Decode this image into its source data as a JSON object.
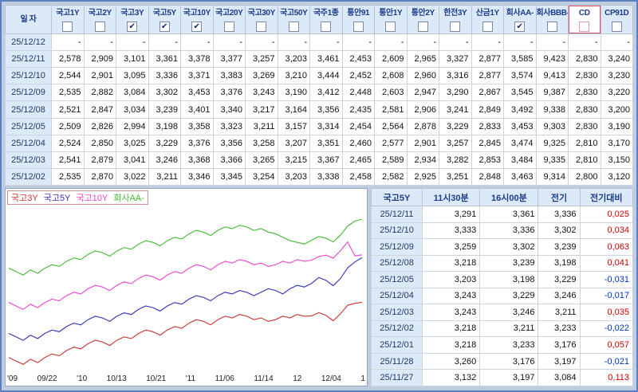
{
  "top_table": {
    "date_header": "일 자",
    "columns": [
      {
        "label": "국고1Y",
        "checked": false,
        "highlight": false
      },
      {
        "label": "국고2Y",
        "checked": false,
        "highlight": false
      },
      {
        "label": "국고3Y",
        "checked": true,
        "highlight": false
      },
      {
        "label": "국고5Y",
        "checked": true,
        "highlight": false
      },
      {
        "label": "국고10Y",
        "checked": true,
        "highlight": false
      },
      {
        "label": "국고20Y",
        "checked": false,
        "highlight": false
      },
      {
        "label": "국고30Y",
        "checked": false,
        "highlight": false
      },
      {
        "label": "국고50Y",
        "checked": false,
        "highlight": false
      },
      {
        "label": "국주1종",
        "checked": false,
        "highlight": false
      },
      {
        "label": "통안91",
        "checked": false,
        "highlight": false
      },
      {
        "label": "통안1Y",
        "checked": false,
        "highlight": false
      },
      {
        "label": "통안2Y",
        "checked": false,
        "highlight": false
      },
      {
        "label": "한전3Y",
        "checked": false,
        "highlight": false
      },
      {
        "label": "산금1Y",
        "checked": false,
        "highlight": false
      },
      {
        "label": "회사AA-",
        "checked": true,
        "highlight": false
      },
      {
        "label": "회사BBB-",
        "checked": false,
        "highlight": false
      },
      {
        "label": "CD",
        "checked": false,
        "highlight": true
      },
      {
        "label": "CP91D",
        "checked": false,
        "highlight": false
      }
    ],
    "rows": [
      {
        "date": "25/12/12",
        "values": [
          "-",
          "-",
          "-",
          "-",
          "-",
          "-",
          "-",
          "-",
          "-",
          "-",
          "-",
          "-",
          "-",
          "-",
          "-",
          "-",
          "-",
          "-"
        ]
      },
      {
        "date": "25/12/11",
        "values": [
          "2,578",
          "2,909",
          "3,101",
          "3,361",
          "3,378",
          "3,377",
          "3,257",
          "3,203",
          "3,461",
          "2,453",
          "2,609",
          "2,965",
          "3,327",
          "2,877",
          "3,585",
          "9,423",
          "2,830",
          "3,240"
        ]
      },
      {
        "date": "25/12/10",
        "values": [
          "2,544",
          "2,901",
          "3,095",
          "3,336",
          "3,371",
          "3,383",
          "3,269",
          "3,210",
          "3,444",
          "2,452",
          "2,608",
          "2,960",
          "3,316",
          "2,877",
          "3,574",
          "9,413",
          "2,830",
          "3,230"
        ]
      },
      {
        "date": "25/12/09",
        "values": [
          "2,535",
          "2,882",
          "3,084",
          "3,302",
          "3,453",
          "3,376",
          "3,243",
          "3,190",
          "3,412",
          "2,448",
          "2,603",
          "2,947",
          "3,290",
          "2,867",
          "3,545",
          "9,387",
          "2,830",
          "3,220"
        ]
      },
      {
        "date": "25/12/08",
        "values": [
          "2,521",
          "2,847",
          "3,034",
          "3,239",
          "3,401",
          "3,340",
          "3,217",
          "3,164",
          "3,356",
          "2,435",
          "2,581",
          "2,906",
          "3,241",
          "2,849",
          "3,492",
          "9,338",
          "2,830",
          "3,200"
        ]
      },
      {
        "date": "25/12/05",
        "values": [
          "2,509",
          "2,826",
          "2,994",
          "3,198",
          "3,358",
          "3,323",
          "3,211",
          "3,157",
          "3,314",
          "2,454",
          "2,564",
          "2,878",
          "3,229",
          "2,833",
          "3,453",
          "9,303",
          "2,830",
          "3,190"
        ]
      },
      {
        "date": "25/12/04",
        "values": [
          "2,524",
          "2,850",
          "3,025",
          "3,229",
          "3,376",
          "3,356",
          "3,258",
          "3,207",
          "3,351",
          "2,460",
          "2,577",
          "2,901",
          "3,257",
          "2,845",
          "3,474",
          "9,325",
          "2,810",
          "3,170"
        ]
      },
      {
        "date": "25/12/03",
        "values": [
          "2,541",
          "2,879",
          "3,041",
          "3,246",
          "3,368",
          "3,366",
          "3,265",
          "3,215",
          "3,367",
          "2,465",
          "2,589",
          "2,934",
          "3,282",
          "2,853",
          "3,484",
          "9,335",
          "2,810",
          "3,150"
        ]
      },
      {
        "date": "25/12/02",
        "values": [
          "2,535",
          "2,870",
          "3,022",
          "3,211",
          "3,346",
          "3,345",
          "3,254",
          "3,203",
          "3,338",
          "2,458",
          "2,582",
          "2,925",
          "3,251",
          "2,848",
          "3,463",
          "9,314",
          "2,800",
          "3,120"
        ]
      }
    ]
  },
  "chart_data": {
    "type": "line",
    "title": "",
    "ylim": [
      2.7,
      3.65
    ],
    "grid": false,
    "legend_position": "top-left",
    "x_labels": [
      "'09",
      "09/22",
      "'10",
      "10/13",
      "10/21",
      "'11",
      "11/06",
      "11/14",
      "12",
      "12/04",
      "1"
    ],
    "series": [
      {
        "name": "국고3Y",
        "color": "#cc3333",
        "values": [
          2.78,
          2.76,
          2.74,
          2.77,
          2.75,
          2.78,
          2.8,
          2.79,
          2.82,
          2.84,
          2.83,
          2.86,
          2.88,
          2.87,
          2.85,
          2.88,
          2.9,
          2.89,
          2.92,
          2.94,
          2.93,
          2.91,
          2.94,
          2.96,
          2.95,
          2.98,
          3.0,
          2.99,
          2.97,
          3.0,
          3.02,
          3.01,
          3.03,
          3.02,
          3.0,
          3.01,
          2.99,
          3.0,
          3.02,
          3.01,
          3.03,
          3.02,
          3.022,
          3.041,
          3.025,
          2.994,
          3.034,
          3.084,
          3.095,
          3.101
        ]
      },
      {
        "name": "국고5Y",
        "color": "#3333bb",
        "values": [
          2.92,
          2.9,
          2.88,
          2.91,
          2.89,
          2.92,
          2.94,
          2.93,
          2.96,
          2.98,
          2.97,
          3.0,
          3.02,
          3.01,
          2.99,
          3.02,
          3.04,
          3.03,
          3.06,
          3.08,
          3.07,
          3.05,
          3.08,
          3.1,
          3.09,
          3.12,
          3.14,
          3.13,
          3.11,
          3.14,
          3.16,
          3.15,
          3.17,
          3.16,
          3.14,
          3.16,
          3.18,
          3.17,
          3.15,
          3.18,
          3.2,
          3.19,
          3.211,
          3.246,
          3.229,
          3.198,
          3.239,
          3.302,
          3.336,
          3.361
        ]
      },
      {
        "name": "국고10Y",
        "color": "#ee44cc",
        "values": [
          3.1,
          3.08,
          3.06,
          3.09,
          3.07,
          3.1,
          3.12,
          3.11,
          3.14,
          3.16,
          3.15,
          3.18,
          3.2,
          3.19,
          3.17,
          3.2,
          3.22,
          3.21,
          3.24,
          3.26,
          3.25,
          3.23,
          3.26,
          3.28,
          3.27,
          3.3,
          3.32,
          3.31,
          3.29,
          3.32,
          3.34,
          3.33,
          3.35,
          3.34,
          3.32,
          3.33,
          3.31,
          3.32,
          3.34,
          3.33,
          3.35,
          3.34,
          3.346,
          3.368,
          3.376,
          3.358,
          3.401,
          3.453,
          3.371,
          3.378
        ]
      },
      {
        "name": "회사AA-",
        "color": "#44bb33",
        "values": [
          3.3,
          3.28,
          3.26,
          3.29,
          3.27,
          3.3,
          3.32,
          3.31,
          3.34,
          3.36,
          3.35,
          3.38,
          3.4,
          3.39,
          3.37,
          3.4,
          3.42,
          3.41,
          3.44,
          3.46,
          3.45,
          3.43,
          3.46,
          3.48,
          3.47,
          3.5,
          3.52,
          3.51,
          3.49,
          3.52,
          3.54,
          3.53,
          3.55,
          3.54,
          3.52,
          3.53,
          3.51,
          3.5,
          3.48,
          3.46,
          3.45,
          3.44,
          3.463,
          3.484,
          3.474,
          3.453,
          3.492,
          3.545,
          3.574,
          3.585
        ]
      }
    ]
  },
  "right_table": {
    "title_col": "국고5Y",
    "headers": [
      "11시30분",
      "16시00분",
      "전기",
      "전기대비"
    ],
    "rows": [
      {
        "date": "25/12/11",
        "v1130": "3,291",
        "v1600": "3,361",
        "prev": "3,336",
        "change": "0,025"
      },
      {
        "date": "25/12/10",
        "v1130": "3,333",
        "v1600": "3,336",
        "prev": "3,302",
        "change": "0,034"
      },
      {
        "date": "25/12/09",
        "v1130": "3,259",
        "v1600": "3,302",
        "prev": "3,239",
        "change": "0,063"
      },
      {
        "date": "25/12/08",
        "v1130": "3,218",
        "v1600": "3,239",
        "prev": "3,198",
        "change": "0,041"
      },
      {
        "date": "25/12/05",
        "v1130": "3,203",
        "v1600": "3,198",
        "prev": "3,229",
        "change": "-0,031"
      },
      {
        "date": "25/12/04",
        "v1130": "3,243",
        "v1600": "3,229",
        "prev": "3,246",
        "change": "-0,017"
      },
      {
        "date": "25/12/03",
        "v1130": "3,243",
        "v1600": "3,246",
        "prev": "3,211",
        "change": "0,035"
      },
      {
        "date": "25/12/02",
        "v1130": "3,218",
        "v1600": "3,211",
        "prev": "3,233",
        "change": "-0,022"
      },
      {
        "date": "25/12/01",
        "v1130": "3,218",
        "v1600": "3,233",
        "prev": "3,176",
        "change": "0,057"
      },
      {
        "date": "25/11/28",
        "v1130": "3,260",
        "v1600": "3,176",
        "prev": "3,197",
        "change": "-0,021"
      },
      {
        "date": "25/11/27",
        "v1130": "3,132",
        "v1600": "3,197",
        "prev": "3,084",
        "change": "0,113"
      }
    ]
  },
  "colors": {
    "accent_highlight": "#e0506e",
    "positive": "#d40000",
    "negative": "#0033cc",
    "header_bg": "#dce9f8",
    "header_text": "#1c3c8c"
  }
}
